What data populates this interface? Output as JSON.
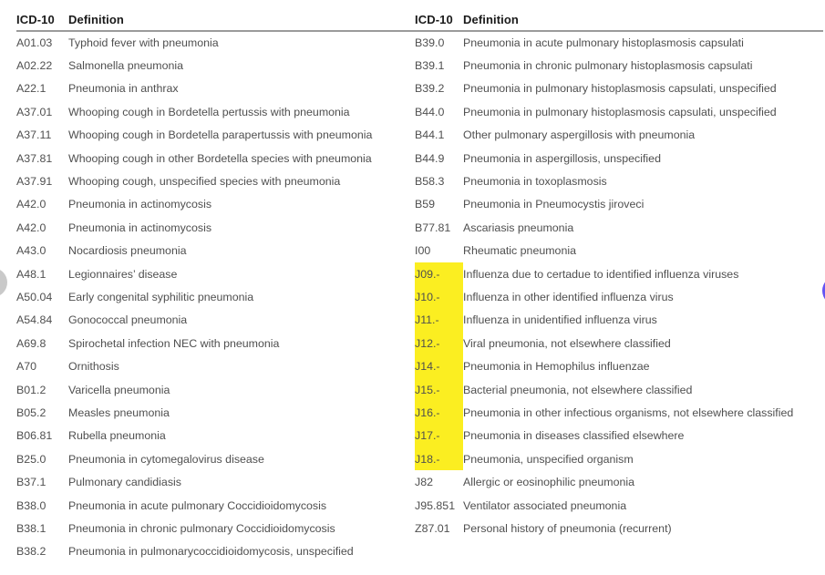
{
  "colors": {
    "highlight": "#fbee21",
    "header_rule": "#9b9b9b",
    "left_edge_circle": "#c9c9c9",
    "right_edge_circle": "#6454f3",
    "body_text": "#4f4f4f",
    "header_text": "#1a1a1a"
  },
  "table": {
    "headers": {
      "code": "ICD-10",
      "definition": "Definition"
    },
    "left_rows": [
      {
        "c": "A01.03",
        "d": "Typhoid fever with pneumonia",
        "h": false
      },
      {
        "c": "A02.22",
        "d": "Salmonella pneumonia",
        "h": false
      },
      {
        "c": "A22.1",
        "d": "Pneumonia in anthrax",
        "h": false
      },
      {
        "c": "A37.01",
        "d": "Whooping cough in Bordetella pertussis with pneumonia",
        "h": false
      },
      {
        "c": "A37.11",
        "d": "Whooping cough in Bordetella parapertussis with pneumonia",
        "h": false
      },
      {
        "c": "A37.81",
        "d": "Whooping cough in other Bordetella species with pneumonia",
        "h": false
      },
      {
        "c": "A37.91",
        "d": "Whooping cough, unspecified species with pneumonia",
        "h": false
      },
      {
        "c": "A42.0",
        "d": "Pneumonia in actinomycosis",
        "h": false
      },
      {
        "c": "A42.0",
        "d": "Pneumonia in actinomycosis",
        "h": false
      },
      {
        "c": "A43.0",
        "d": "Nocardiosis pneumonia",
        "h": false
      },
      {
        "c": "A48.1",
        "d": "Legionnaires’ disease",
        "h": false
      },
      {
        "c": "A50.04",
        "d": "Early congenital syphilitic pneumonia",
        "h": false
      },
      {
        "c": "A54.84",
        "d": "Gonococcal pneumonia",
        "h": false
      },
      {
        "c": "A69.8",
        "d": "Spirochetal infection NEC with pneumonia",
        "h": false
      },
      {
        "c": "A70",
        "d": "Ornithosis",
        "h": false
      },
      {
        "c": "B01.2",
        "d": "Varicella pneumonia",
        "h": false
      },
      {
        "c": "B05.2",
        "d": "Measles pneumonia",
        "h": false
      },
      {
        "c": "B06.81",
        "d": "Rubella pneumonia",
        "h": false
      },
      {
        "c": "B25.0",
        "d": "Pneumonia in cytomegalovirus disease",
        "h": false
      },
      {
        "c": "B37.1",
        "d": "Pulmonary candidiasis",
        "h": false
      },
      {
        "c": "B38.0",
        "d": "Pneumonia in acute pulmonary Coccidioidomycosis",
        "h": false
      },
      {
        "c": "B38.1",
        "d": "Pneumonia in chronic pulmonary Coccidioidomycosis",
        "h": false
      },
      {
        "c": "B38.2",
        "d": "Pneumonia in pulmonarycoccidioidomycosis, unspecified",
        "h": false
      }
    ],
    "right_rows": [
      {
        "c": "B39.0",
        "d": "Pneumonia in acute pulmonary histoplasmosis capsulati",
        "h": false
      },
      {
        "c": "B39.1",
        "d": "Pneumonia in chronic pulmonary histoplasmosis capsulati",
        "h": false
      },
      {
        "c": "B39.2",
        "d": "Pneumonia in pulmonary histoplasmosis capsulati, unspecified",
        "h": false
      },
      {
        "c": "B44.0",
        "d": "Pneumonia in pulmonary histoplasmosis capsulati, unspecified",
        "h": false
      },
      {
        "c": "B44.1",
        "d": "Other pulmonary aspergillosis with pneumonia",
        "h": false
      },
      {
        "c": "B44.9",
        "d": "Pneumonia in aspergillosis, unspecified",
        "h": false
      },
      {
        "c": "B58.3",
        "d": "Pneumonia in toxoplasmosis",
        "h": false
      },
      {
        "c": "B59",
        "d": "Pneumonia in Pneumocystis jiroveci",
        "h": false
      },
      {
        "c": "B77.81",
        "d": "Ascariasis pneumonia",
        "h": false
      },
      {
        "c": "I00",
        "d": "Rheumatic pneumonia",
        "h": false
      },
      {
        "c": "J09.-",
        "d": "Influenza due to certadue to identified influenza viruses",
        "h": true
      },
      {
        "c": "J10.-",
        "d": "Influenza in other identified influenza virus",
        "h": true
      },
      {
        "c": "J11.-",
        "d": "Influenza in unidentified influenza virus",
        "h": true
      },
      {
        "c": "J12.-",
        "d": "Viral pneumonia, not elsewhere classified",
        "h": true
      },
      {
        "c": "J14.-",
        "d": "Pneumonia in Hemophilus influenzae",
        "h": true
      },
      {
        "c": "J15.-",
        "d": "Bacterial pneumonia, not elsewhere classified",
        "h": true
      },
      {
        "c": "J16.-",
        "d": "Pneumonia in other infectious organisms, not elsewhere classified",
        "h": true
      },
      {
        "c": "J17.-",
        "d": "Pneumonia in diseases classified elsewhere",
        "h": true
      },
      {
        "c": "J18.-",
        "d": "Pneumonia, unspecified organism",
        "h": true
      },
      {
        "c": "J82",
        "d": "Allergic or eosinophilic pneumonia",
        "h": false
      },
      {
        "c": "J95.851",
        "d": "Ventilator associated pneumonia",
        "h": false
      },
      {
        "c": "Z87.01",
        "d": "Personal history of pneumonia (recurrent)",
        "h": false
      }
    ]
  }
}
